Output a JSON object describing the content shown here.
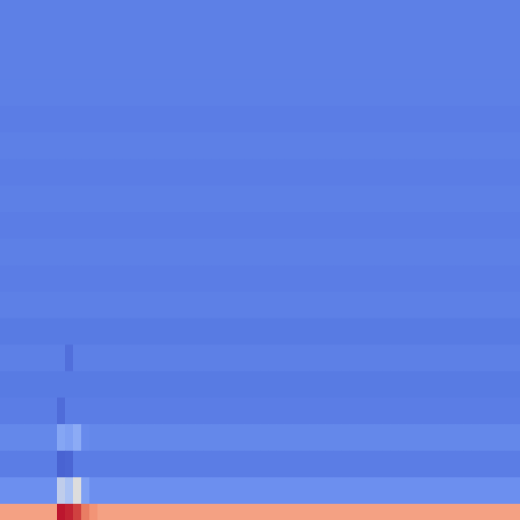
{
  "chart_data": {
    "type": "heatmap",
    "rows": 20,
    "columns": 64,
    "colormap": "coolwarm",
    "color_range": [
      0,
      1
    ],
    "base_value": 0.18,
    "row_values": [
      0.18,
      0.18,
      0.18,
      0.18,
      0.17,
      0.18,
      0.17,
      0.18,
      0.17,
      0.18,
      0.17,
      0.18,
      0.16,
      0.18,
      0.16,
      0.17,
      0.21,
      0.17,
      0.24,
      0.72
    ],
    "highlight_columns": [
      {
        "column": 7,
        "values_by_row": {
          "16": 0.32,
          "18": 0.45,
          "19": 0.97
        }
      },
      {
        "column": 8,
        "values_by_row": {
          "16": 0.3,
          "18": 0.42,
          "19": 0.95
        }
      },
      {
        "column": 9,
        "values_by_row": {
          "16": 0.34,
          "18": 0.5,
          "19": 0.9
        }
      },
      {
        "column": 10,
        "values_by_row": {
          "16": 0.22,
          "18": 0.3,
          "19": 0.8
        }
      },
      {
        "column": 11,
        "values_by_row": {
          "19": 0.76
        }
      }
    ],
    "dark_spots": [
      {
        "row": 17,
        "column": 7,
        "value": 0.08
      },
      {
        "row": 17,
        "column": 8,
        "value": 0.09
      },
      {
        "row": 15,
        "column": 7,
        "value": 0.11
      },
      {
        "row": 13,
        "column": 8,
        "value": 0.12
      }
    ],
    "colors": {
      "low": "#3b4cc0",
      "mid": "#dddddd",
      "high": "#b40426"
    },
    "grid": false,
    "axes_visible": false
  }
}
